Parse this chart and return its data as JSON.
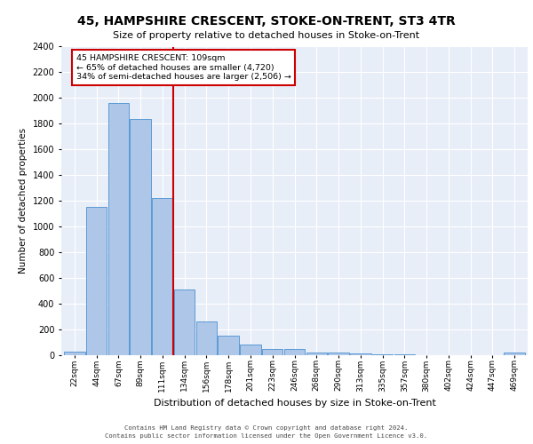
{
  "title": "45, HAMPSHIRE CRESCENT, STOKE-ON-TRENT, ST3 4TR",
  "subtitle": "Size of property relative to detached houses in Stoke-on-Trent",
  "xlabel": "Distribution of detached houses by size in Stoke-on-Trent",
  "ylabel": "Number of detached properties",
  "bar_labels": [
    "22sqm",
    "44sqm",
    "67sqm",
    "89sqm",
    "111sqm",
    "134sqm",
    "156sqm",
    "178sqm",
    "201sqm",
    "223sqm",
    "246sqm",
    "268sqm",
    "290sqm",
    "313sqm",
    "335sqm",
    "357sqm",
    "380sqm",
    "402sqm",
    "424sqm",
    "447sqm",
    "469sqm"
  ],
  "bar_values": [
    30,
    1150,
    1960,
    1840,
    1220,
    510,
    265,
    155,
    80,
    50,
    45,
    20,
    22,
    15,
    10,
    5,
    3,
    2,
    2,
    2,
    20
  ],
  "bar_color": "#aec6e8",
  "bar_edge_color": "#5b9bd5",
  "background_color": "#e8eef8",
  "grid_color": "#ffffff",
  "annotation_text_line1": "45 HAMPSHIRE CRESCENT: 109sqm",
  "annotation_text_line2": "← 65% of detached houses are smaller (4,720)",
  "annotation_text_line3": "34% of semi-detached houses are larger (2,506) →",
  "annotation_box_facecolor": "#ffffff",
  "annotation_box_edgecolor": "#cc0000",
  "vline_color": "#cc0000",
  "vline_x": 4.5,
  "ylim": [
    0,
    2400
  ],
  "yticks": [
    0,
    200,
    400,
    600,
    800,
    1000,
    1200,
    1400,
    1600,
    1800,
    2000,
    2200,
    2400
  ],
  "footer_line1": "Contains HM Land Registry data © Crown copyright and database right 2024.",
  "footer_line2": "Contains public sector information licensed under the Open Government Licence v3.0."
}
